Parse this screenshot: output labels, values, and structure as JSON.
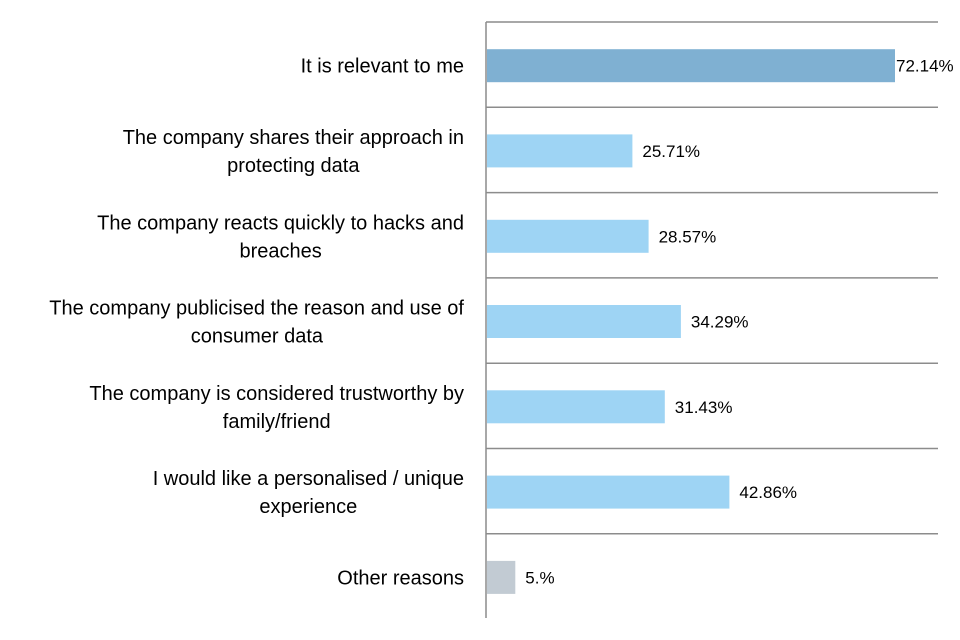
{
  "chart_data": {
    "type": "bar",
    "orientation": "horizontal",
    "categories": [
      [
        "It is relevant to me"
      ],
      [
        "The company shares their approach in",
        "protecting data"
      ],
      [
        "The company reacts quickly to hacks and",
        "breaches"
      ],
      [
        "The company publicised the reason and use of",
        "consumer data"
      ],
      [
        "The company is considered trustworthy by",
        "family/friend"
      ],
      [
        "I would like a personalised / unique",
        "experience"
      ],
      [
        "Other reasons"
      ]
    ],
    "values": [
      72.14,
      25.71,
      28.57,
      34.29,
      31.43,
      42.86,
      5.0
    ],
    "value_labels": [
      "72.14%",
      "25.71%",
      "28.57%",
      "34.29%",
      "31.43%",
      "42.86%",
      "5.%"
    ],
    "bar_colors": [
      "#7fb0d2",
      "#9ed4f4",
      "#9ed4f4",
      "#9ed4f4",
      "#9ed4f4",
      "#9ed4f4",
      "#c2cbd3"
    ],
    "xlim": [
      0,
      80
    ],
    "grid": true,
    "legend": "none",
    "title": "",
    "xlabel": "",
    "ylabel": ""
  }
}
